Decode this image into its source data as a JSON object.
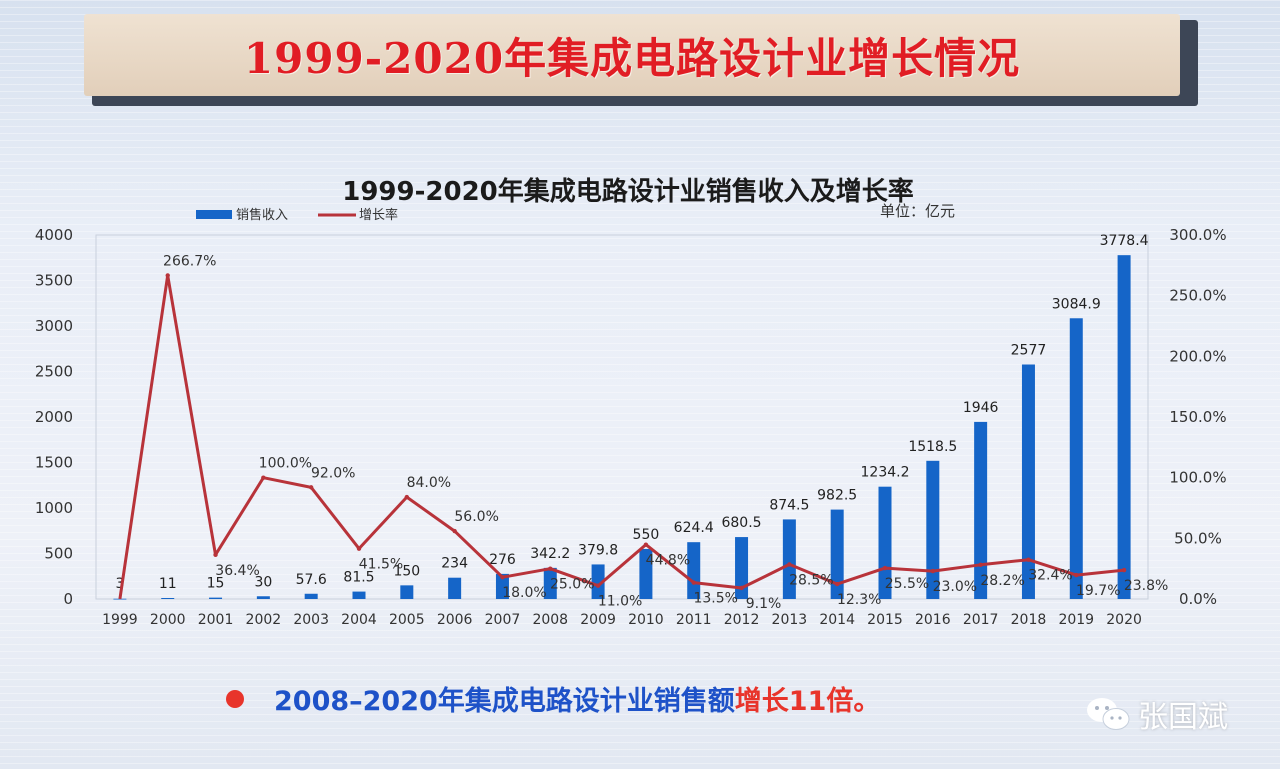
{
  "banner": {
    "title": "1999-2020年集成电路设计业增长情况"
  },
  "chart_data": {
    "type": "bar+line",
    "title": "1999-2020年集成电路设计业销售收入及增长率",
    "unit_note": "单位：亿元",
    "legend": {
      "placement": "top-left",
      "bar_label": "销售收入",
      "line_label": "增长率"
    },
    "categories": [
      "1999",
      "2000",
      "2001",
      "2002",
      "2003",
      "2004",
      "2005",
      "2006",
      "2007",
      "2008",
      "2009",
      "2010",
      "2011",
      "2012",
      "2013",
      "2014",
      "2015",
      "2016",
      "2017",
      "2018",
      "2019",
      "2020"
    ],
    "series": [
      {
        "name": "销售收入",
        "type": "bar",
        "axis": "left",
        "color": "#1565c8",
        "values": [
          3,
          11,
          15,
          30,
          57.6,
          81.5,
          150,
          234,
          276,
          342.2,
          379.8,
          550,
          624.4,
          680.5,
          874.5,
          982.5,
          1234.2,
          1518.5,
          1946,
          2577,
          3084.9,
          3778.4
        ],
        "labels": [
          "3",
          "11",
          "15",
          "30",
          "57.6",
          "81.5",
          "150",
          "234",
          "276",
          "342.2",
          "379.8",
          "550",
          "624.4",
          "680.5",
          "874.5",
          "982.5",
          "1234.2",
          "1518.5",
          "1946",
          "2577",
          "3084.9",
          "3778.4"
        ]
      },
      {
        "name": "增长率",
        "type": "line",
        "axis": "right",
        "color": "#b8333a",
        "values": [
          null,
          266.7,
          36.4,
          100.0,
          92.0,
          41.5,
          84.0,
          56.0,
          18.0,
          25.0,
          11.0,
          44.8,
          13.5,
          9.1,
          28.5,
          12.3,
          25.5,
          23.0,
          28.2,
          32.4,
          19.7,
          23.8
        ],
        "labels": [
          null,
          "266.7%",
          "36.4%",
          "100.0%",
          "92.0%",
          "41.5%",
          "84.0%",
          "56.0%",
          "18.0%",
          "25.0%",
          "11.0%",
          "44.8%",
          "13.5%",
          "9.1%",
          "28.5%",
          "12.3%",
          "25.5%",
          "23.0%",
          "28.2%",
          "32.4%",
          "19.7%",
          "23.8%"
        ]
      }
    ],
    "ylim_left": [
      0,
      4000
    ],
    "yticks_left": [
      "0",
      "500",
      "1000",
      "1500",
      "2000",
      "2500",
      "3000",
      "3500",
      "4000"
    ],
    "ylim_right": [
      0,
      300
    ],
    "yticks_right": [
      "0.0%",
      "50.0%",
      "100.0%",
      "150.0%",
      "200.0%",
      "250.0%",
      "300.0%"
    ],
    "grid": false
  },
  "footer": {
    "text_blue": "2008–2020年集成电路设计业销售额",
    "text_red": "增长11倍。"
  },
  "watermark": {
    "author": "张国斌"
  }
}
